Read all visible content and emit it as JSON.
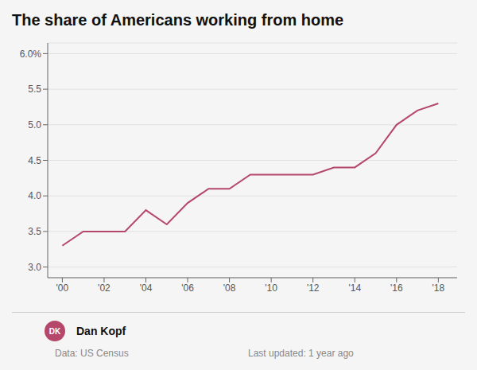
{
  "chart_data": {
    "type": "line",
    "title": "The share of Americans working from home",
    "x": [
      2000,
      2001,
      2002,
      2003,
      2004,
      2005,
      2006,
      2007,
      2008,
      2009,
      2010,
      2011,
      2012,
      2013,
      2014,
      2015,
      2016,
      2017,
      2018
    ],
    "values": [
      3.3,
      3.5,
      3.5,
      3.5,
      3.8,
      3.6,
      3.9,
      4.1,
      4.1,
      4.3,
      4.3,
      4.3,
      4.3,
      4.4,
      4.4,
      4.6,
      5.0,
      5.2,
      5.3
    ],
    "color": "#b5476b",
    "xlim": [
      1999.3,
      2018.9
    ],
    "xticks": [
      {
        "value": 2000,
        "label": "'00"
      },
      {
        "value": 2002,
        "label": "'02"
      },
      {
        "value": 2004,
        "label": "'04"
      },
      {
        "value": 2006,
        "label": "'06"
      },
      {
        "value": 2008,
        "label": "'08"
      },
      {
        "value": 2010,
        "label": "'10"
      },
      {
        "value": 2012,
        "label": "'12"
      },
      {
        "value": 2014,
        "label": "'14"
      },
      {
        "value": 2016,
        "label": "'16"
      },
      {
        "value": 2018,
        "label": "'18"
      }
    ],
    "ylim": [
      2.85,
      6.15
    ],
    "yticks": [
      {
        "value": 3,
        "label": "3.0"
      },
      3.5,
      {
        "value": 4,
        "label": "4.0"
      },
      4.5,
      {
        "value": 5,
        "label": "5.0"
      },
      5.5,
      {
        "value": 6,
        "label": "6.0%"
      }
    ],
    "grid": true,
    "annotations": [
      "DK",
      "Dan Kopf",
      "Data: US Census",
      "Last updated: 1 year ago"
    ]
  }
}
